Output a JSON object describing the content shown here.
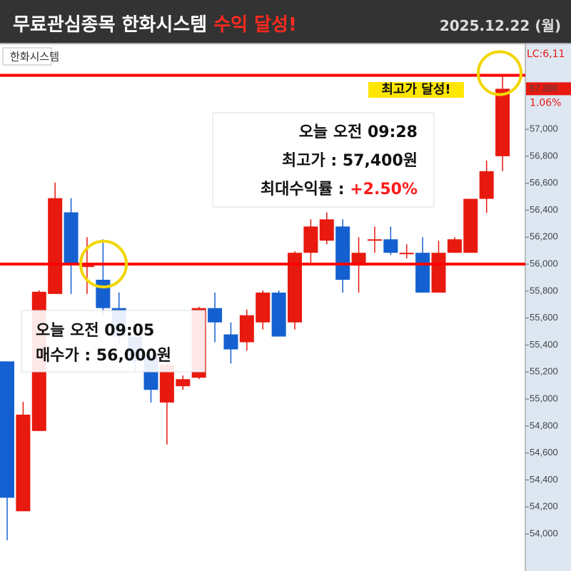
{
  "chart_data": {
    "type": "candlestick",
    "title": "무료관심종목 한화시스템",
    "title_highlight": "수익 달성!",
    "date": "2025.12.22 (월)",
    "symbol_label": "한화시스템",
    "peak_badge": "최고가 달성!",
    "sell_note": {
      "time": "오늘 오전 09:28",
      "price": "최고가 : 57,400원",
      "return_label": "최대수익률 : ",
      "return_value": "+2.50%"
    },
    "buy_note": {
      "time": "오늘 오전 09:05",
      "price": "매수가 : 56,000원"
    },
    "side_labels": {
      "lc": "LC:6,11",
      "change": "1.06%"
    },
    "last_price": {
      "value": 57300,
      "label": "57,300"
    },
    "reference_lines": [
      56000,
      57400
    ],
    "up_color": "#e8190f",
    "down_color": "#1560d0",
    "candles": [
      {
        "open": 55279,
        "high": 55279,
        "low": 53953,
        "close": 54268
      },
      {
        "open": 54168,
        "high": 54979,
        "low": 54168,
        "close": 54884
      },
      {
        "open": 54763,
        "high": 55805,
        "low": 54763,
        "close": 55795
      },
      {
        "open": 55779,
        "high": 56605,
        "low": 55779,
        "close": 56489
      },
      {
        "open": 56384,
        "high": 56489,
        "low": 55779,
        "close": 56000
      },
      {
        "open": 55989,
        "high": 56200,
        "low": 55779,
        "close": 55989
      },
      {
        "open": 55884,
        "high": 56184,
        "low": 55621,
        "close": 55674
      },
      {
        "open": 55674,
        "high": 55789,
        "low": 55411,
        "close": 55463
      },
      {
        "open": 55463,
        "high": 55495,
        "low": 55200,
        "close": 55279
      },
      {
        "open": 55321,
        "high": 55358,
        "low": 54974,
        "close": 55068
      },
      {
        "open": 54974,
        "high": 55279,
        "low": 54663,
        "close": 55253
      },
      {
        "open": 55095,
        "high": 55174,
        "low": 55068,
        "close": 55147
      },
      {
        "open": 55158,
        "high": 55684,
        "low": 55147,
        "close": 55674
      },
      {
        "open": 55674,
        "high": 55789,
        "low": 55421,
        "close": 55568
      },
      {
        "open": 55479,
        "high": 55568,
        "low": 55263,
        "close": 55368
      },
      {
        "open": 55421,
        "high": 55663,
        "low": 55358,
        "close": 55621
      },
      {
        "open": 55568,
        "high": 55805,
        "low": 55516,
        "close": 55789
      },
      {
        "open": 55789,
        "high": 55805,
        "low": 55463,
        "close": 55463
      },
      {
        "open": 55568,
        "high": 56095,
        "low": 55516,
        "close": 56084
      },
      {
        "open": 56084,
        "high": 56332,
        "low": 56000,
        "close": 56279
      },
      {
        "open": 56174,
        "high": 56384,
        "low": 56147,
        "close": 56332
      },
      {
        "open": 56279,
        "high": 56332,
        "low": 55789,
        "close": 55884
      },
      {
        "open": 55989,
        "high": 56200,
        "low": 55789,
        "close": 56084
      },
      {
        "open": 56184,
        "high": 56279,
        "low": 56084,
        "close": 56184
      },
      {
        "open": 56184,
        "high": 56279,
        "low": 56068,
        "close": 56084
      },
      {
        "open": 56084,
        "high": 56147,
        "low": 56042,
        "close": 56084
      },
      {
        "open": 56084,
        "high": 56200,
        "low": 55789,
        "close": 55789
      },
      {
        "open": 55789,
        "high": 56174,
        "low": 55789,
        "close": 56084
      },
      {
        "open": 56084,
        "high": 56200,
        "low": 56084,
        "close": 56184
      },
      {
        "open": 56084,
        "high": 56484,
        "low": 56084,
        "close": 56484
      },
      {
        "open": 56484,
        "high": 56768,
        "low": 56379,
        "close": 56689
      },
      {
        "open": 56800,
        "high": 57400,
        "low": 56689,
        "close": 57300
      }
    ],
    "ylim": [
      53725,
      57630
    ],
    "yticks": [
      {
        "value": 54000,
        "label": "54,000"
      },
      {
        "value": 54200,
        "label": "54,200"
      },
      {
        "value": 54400,
        "label": "54,400"
      },
      {
        "value": 54600,
        "label": "54,600"
      },
      {
        "value": 54800,
        "label": "54,800"
      },
      {
        "value": 55000,
        "label": "55,000"
      },
      {
        "value": 55200,
        "label": "55,200"
      },
      {
        "value": 55400,
        "label": "55,400"
      },
      {
        "value": 55600,
        "label": "55,600"
      },
      {
        "value": 55800,
        "label": "55,800"
      },
      {
        "value": 56000,
        "label": "56,000"
      },
      {
        "value": 56200,
        "label": "56,200"
      },
      {
        "value": 56400,
        "label": "56,400"
      },
      {
        "value": 56600,
        "label": "56,600"
      },
      {
        "value": 56800,
        "label": "56,800"
      },
      {
        "value": 57000,
        "label": "57,000"
      }
    ]
  }
}
